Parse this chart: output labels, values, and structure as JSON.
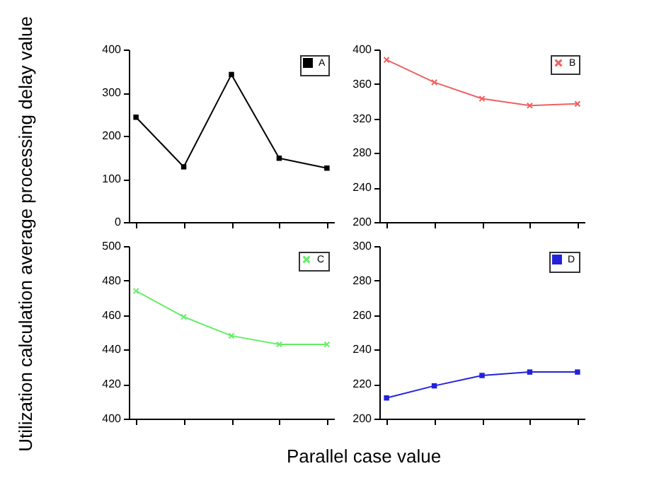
{
  "chart_data": [
    {
      "type": "line",
      "ylabel": "Utilization calculation average processing delay value",
      "categories": [
        null,
        null,
        null,
        null,
        null
      ],
      "series": [
        {
          "name": "A",
          "color": "#000000",
          "values": [
            243,
            128,
            342,
            148,
            125
          ]
        }
      ],
      "ylim": [
        0,
        400
      ],
      "yticks": [
        0,
        100,
        200,
        300,
        400
      ],
      "marker": "square",
      "legend": "top right",
      "tick_labels": "y",
      "grid": false
    },
    {
      "type": "line",
      "categories": [
        null,
        null,
        null,
        null,
        null
      ],
      "series": [
        {
          "name": "B",
          "color": "#f06060",
          "values": [
            388,
            362,
            343,
            335,
            337
          ]
        }
      ],
      "ylim": [
        200,
        400
      ],
      "yticks": [
        200,
        240,
        280,
        320,
        360,
        400
      ],
      "marker": "cross",
      "legend": "top right",
      "tick_labels": "y",
      "grid": false
    },
    {
      "type": "line",
      "xlabel": "Parallel case value",
      "categories": [
        null,
        null,
        null,
        null,
        null
      ],
      "series": [
        {
          "name": "C",
          "color": "#66ee66",
          "values": [
            474,
            459,
            448,
            443,
            443
          ]
        }
      ],
      "ylim": [
        400,
        500
      ],
      "yticks": [
        400,
        420,
        440,
        460,
        480,
        500
      ],
      "marker": "cross",
      "legend": "top right",
      "tick_labels": "y",
      "grid": false
    },
    {
      "type": "line",
      "categories": [
        null,
        null,
        null,
        null,
        null
      ],
      "series": [
        {
          "name": "D",
          "color": "#2222dd",
          "values": [
            212,
            219,
            225,
            227,
            227
          ]
        }
      ],
      "ylim": [
        200,
        300
      ],
      "yticks": [
        200,
        220,
        240,
        260,
        280,
        300
      ],
      "marker": "square",
      "legend": "top right",
      "tick_labels": "y",
      "grid": false
    }
  ]
}
